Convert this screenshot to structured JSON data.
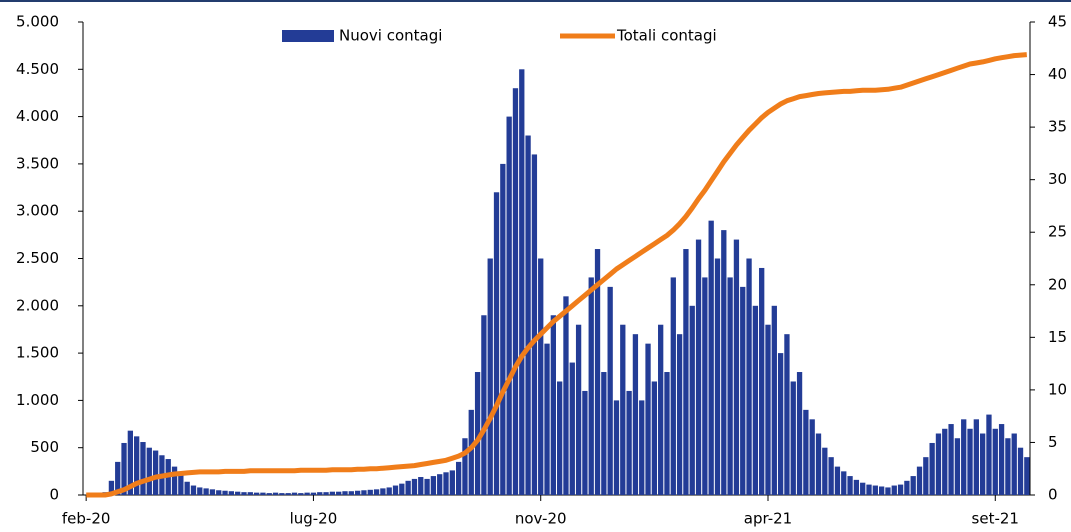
{
  "chart_data": {
    "type": "bar_line",
    "categories": [
      "feb-20",
      null,
      null,
      null,
      null,
      null,
      null,
      null,
      null,
      null,
      null,
      null,
      null,
      null,
      null,
      null,
      null,
      null,
      null,
      null,
      null,
      null,
      null,
      null,
      null,
      null,
      null,
      null,
      null,
      null,
      null,
      null,
      null,
      null,
      null,
      null,
      "lug-20",
      null,
      null,
      null,
      null,
      null,
      null,
      null,
      null,
      null,
      null,
      null,
      null,
      null,
      null,
      null,
      null,
      null,
      null,
      null,
      null,
      null,
      null,
      null,
      null,
      null,
      null,
      null,
      null,
      null,
      null,
      null,
      null,
      null,
      null,
      null,
      "nov-20",
      null,
      null,
      null,
      null,
      null,
      null,
      null,
      null,
      null,
      null,
      null,
      null,
      null,
      null,
      null,
      null,
      null,
      null,
      null,
      null,
      null,
      null,
      null,
      null,
      null,
      null,
      null,
      null,
      null,
      null,
      null,
      null,
      null,
      null,
      null,
      "apr-21",
      null,
      null,
      null,
      null,
      null,
      null,
      null,
      null,
      null,
      null,
      null,
      null,
      null,
      null,
      null,
      null,
      null,
      null,
      null,
      null,
      null,
      null,
      null,
      null,
      null,
      null,
      null,
      null,
      null,
      null,
      null,
      null,
      null,
      null,
      null,
      "set-21",
      null,
      null,
      null,
      null,
      null
    ],
    "series": [
      {
        "name": "Nuovi contagi",
        "color": "#233c96",
        "kind": "bar",
        "axis": "y",
        "values": [
          0,
          0,
          5,
          30,
          150,
          350,
          550,
          680,
          620,
          560,
          500,
          470,
          420,
          380,
          300,
          220,
          140,
          100,
          80,
          70,
          60,
          50,
          45,
          40,
          35,
          30,
          30,
          25,
          25,
          20,
          25,
          20,
          20,
          25,
          20,
          25,
          25,
          30,
          30,
          35,
          35,
          40,
          40,
          45,
          50,
          55,
          60,
          70,
          80,
          100,
          120,
          150,
          170,
          190,
          170,
          200,
          220,
          240,
          260,
          350,
          600,
          900,
          1300,
          1900,
          2500,
          3200,
          3500,
          4000,
          4300,
          4500,
          3800,
          3600,
          2500,
          1600,
          1900,
          1200,
          2100,
          1400,
          1800,
          1100,
          2300,
          2600,
          1300,
          2200,
          1000,
          1800,
          1100,
          1700,
          1000,
          1600,
          1200,
          1800,
          1300,
          2300,
          1700,
          2600,
          2000,
          2700,
          2300,
          2900,
          2500,
          2800,
          2300,
          2700,
          2200,
          2500,
          2000,
          2400,
          1800,
          2000,
          1500,
          1700,
          1200,
          1300,
          900,
          800,
          650,
          500,
          400,
          300,
          250,
          200,
          160,
          130,
          110,
          100,
          90,
          80,
          100,
          110,
          150,
          200,
          300,
          400,
          550,
          650,
          700,
          750,
          600,
          800,
          700,
          800,
          650,
          850,
          700,
          750,
          600,
          650,
          500,
          400
        ]
      },
      {
        "name": "Totali contagi",
        "color": "#f07d1a",
        "kind": "line",
        "axis": "y2",
        "values": [
          0,
          0,
          0,
          0,
          0.1,
          0.3,
          0.5,
          0.8,
          1.1,
          1.3,
          1.5,
          1.7,
          1.8,
          1.9,
          2.0,
          2.05,
          2.1,
          2.15,
          2.2,
          2.2,
          2.2,
          2.2,
          2.25,
          2.25,
          2.25,
          2.25,
          2.3,
          2.3,
          2.3,
          2.3,
          2.3,
          2.3,
          2.3,
          2.3,
          2.35,
          2.35,
          2.35,
          2.35,
          2.35,
          2.4,
          2.4,
          2.4,
          2.4,
          2.45,
          2.45,
          2.5,
          2.5,
          2.55,
          2.6,
          2.65,
          2.7,
          2.75,
          2.8,
          2.9,
          3.0,
          3.1,
          3.2,
          3.3,
          3.5,
          3.7,
          4.0,
          4.5,
          5.2,
          6.2,
          7.3,
          8.5,
          9.8,
          11.0,
          12.2,
          13.2,
          14.0,
          14.7,
          15.3,
          15.9,
          16.5,
          17.0,
          17.5,
          18.0,
          18.5,
          19.0,
          19.5,
          20.0,
          20.5,
          21.0,
          21.5,
          21.9,
          22.3,
          22.7,
          23.1,
          23.5,
          23.9,
          24.3,
          24.7,
          25.2,
          25.8,
          26.5,
          27.3,
          28.2,
          29.0,
          29.9,
          30.8,
          31.7,
          32.5,
          33.3,
          34.0,
          34.7,
          35.3,
          35.9,
          36.4,
          36.8,
          37.2,
          37.5,
          37.7,
          37.9,
          38.0,
          38.1,
          38.2,
          38.25,
          38.3,
          38.35,
          38.4,
          38.4,
          38.45,
          38.5,
          38.5,
          38.5,
          38.55,
          38.6,
          38.7,
          38.8,
          39.0,
          39.2,
          39.4,
          39.6,
          39.8,
          40.0,
          40.2,
          40.4,
          40.6,
          40.8,
          41.0,
          41.1,
          41.2,
          41.35,
          41.5,
          41.6,
          41.7,
          41.8,
          41.85,
          41.9
        ]
      }
    ],
    "ylim": [
      0,
      5000
    ],
    "yticks": [
      0,
      500,
      {
        "value": 1000,
        "label": "1.000"
      },
      {
        "value": 1500,
        "label": "1.500"
      },
      {
        "value": 2000,
        "label": "2.000"
      },
      {
        "value": 2500,
        "label": "2.500"
      },
      {
        "value": 3000,
        "label": "3.000"
      },
      {
        "value": 3500,
        "label": "3.500"
      },
      {
        "value": 4000,
        "label": "4.000"
      },
      {
        "value": 4500,
        "label": "4.500"
      },
      {
        "value": 5000,
        "label": "5.000"
      }
    ],
    "y2lim": [
      0,
      45
    ],
    "y2ticks": [
      0,
      5,
      10,
      15,
      20,
      25,
      30,
      35,
      40,
      45
    ],
    "legend": "top"
  }
}
